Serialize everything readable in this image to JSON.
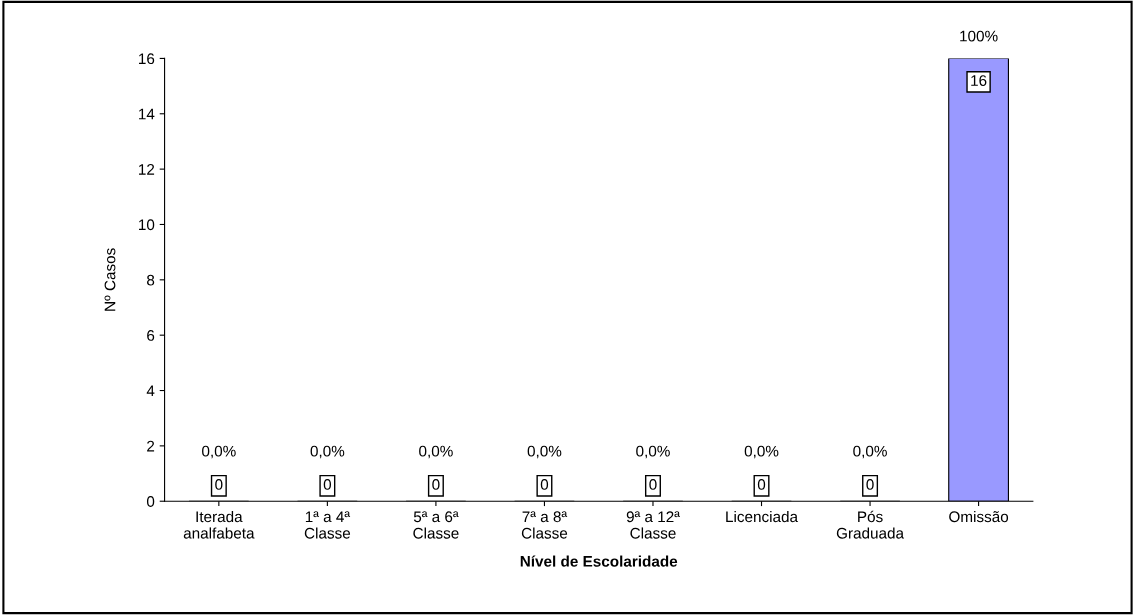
{
  "chart_data": {
    "type": "bar",
    "xlabel": "Nível de Escolaridade",
    "ylabel": "Nº Casos",
    "categories": [
      "Iterada\nanalfabeta",
      "1ª a 4ª\nClasse",
      "5ª a 6ª\nClasse",
      "7ª a 8ª\nClasse",
      "9ª a 12ª\nClasse",
      "Licenciada",
      "Pós\nGraduada",
      "Omissão"
    ],
    "values": [
      0,
      0,
      0,
      0,
      0,
      0,
      0,
      16
    ],
    "color": "#9999ff",
    "data_labels": true,
    "ylim": [
      0,
      16
    ],
    "yticks": [
      0,
      2,
      4,
      6,
      8,
      10,
      12,
      14,
      16
    ],
    "grid": false,
    "legend": false,
    "annotations": [
      {
        "text": "0,0%",
        "x": "Iterada\nanalfabeta",
        "y": 0
      },
      {
        "text": "0,0%",
        "x": "1ª a 4ª\nClasse",
        "y": 0
      },
      {
        "text": "0,0%",
        "x": "5ª a 6ª\nClasse",
        "y": 0
      },
      {
        "text": "0,0%",
        "x": "7ª a 8ª\nClasse",
        "y": 0
      },
      {
        "text": "0,0%",
        "x": "9ª a 12ª\nClasse",
        "y": 0
      },
      {
        "text": "0,0%",
        "x": "Licenciada",
        "y": 0
      },
      {
        "text": "0,0%",
        "x": "Pós\nGraduada",
        "y": 0
      },
      {
        "text": "100%",
        "x": "Omissão",
        "y": 16
      }
    ]
  }
}
